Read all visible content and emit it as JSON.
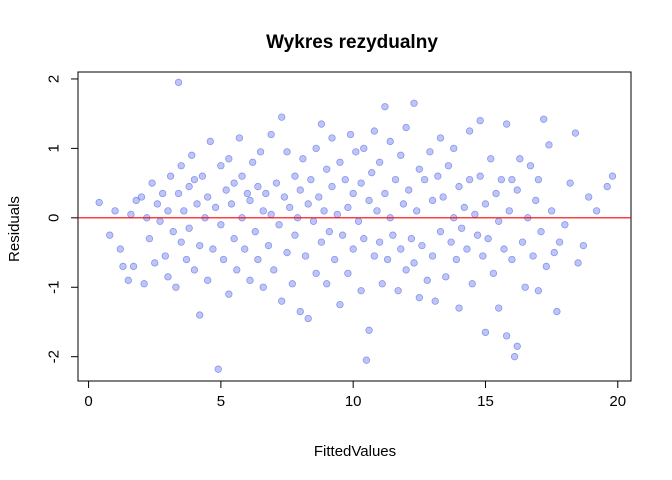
{
  "chart_data": {
    "type": "scatter",
    "title": "Wykres rezydualny",
    "xlabel": "FittedValues",
    "ylabel": "Residuals",
    "xlim": [
      -0.4,
      20.5
    ],
    "ylim": [
      -2.35,
      2.1
    ],
    "xticks": [
      0,
      5,
      10,
      15,
      20
    ],
    "yticks": [
      -2,
      -1,
      0,
      1,
      2
    ],
    "grid": false,
    "point_color": "#6b7cf0",
    "point_stroke": "#3c4fd8",
    "hline": {
      "y": 0,
      "color": "#ff0000"
    },
    "points": [
      [
        0.4,
        0.22
      ],
      [
        0.8,
        -0.25
      ],
      [
        1.0,
        0.1
      ],
      [
        1.2,
        -0.45
      ],
      [
        1.3,
        -0.7
      ],
      [
        1.5,
        -0.9
      ],
      [
        1.6,
        0.05
      ],
      [
        1.8,
        0.25
      ],
      [
        1.7,
        -0.7
      ],
      [
        2.0,
        0.3
      ],
      [
        2.1,
        -0.95
      ],
      [
        2.2,
        0.0
      ],
      [
        2.4,
        0.5
      ],
      [
        2.3,
        -0.3
      ],
      [
        2.5,
        -0.65
      ],
      [
        2.6,
        0.2
      ],
      [
        2.7,
        -0.05
      ],
      [
        2.8,
        0.35
      ],
      [
        2.9,
        -0.55
      ],
      [
        3.0,
        0.1
      ],
      [
        3.0,
        -0.85
      ],
      [
        3.1,
        0.6
      ],
      [
        3.2,
        -0.2
      ],
      [
        3.3,
        -1.0
      ],
      [
        3.4,
        1.95
      ],
      [
        3.4,
        0.35
      ],
      [
        3.5,
        -0.35
      ],
      [
        3.5,
        0.75
      ],
      [
        3.6,
        0.1
      ],
      [
        3.7,
        -0.6
      ],
      [
        3.8,
        0.45
      ],
      [
        3.8,
        -0.15
      ],
      [
        3.9,
        0.9
      ],
      [
        4.0,
        0.55
      ],
      [
        4.0,
        -0.75
      ],
      [
        4.1,
        0.2
      ],
      [
        4.2,
        -1.4
      ],
      [
        4.2,
        -0.4
      ],
      [
        4.3,
        0.6
      ],
      [
        4.4,
        0.0
      ],
      [
        4.5,
        -0.9
      ],
      [
        4.5,
        0.3
      ],
      [
        4.6,
        1.1
      ],
      [
        4.7,
        -0.45
      ],
      [
        4.8,
        0.15
      ],
      [
        4.9,
        -2.18
      ],
      [
        5.0,
        0.75
      ],
      [
        5.0,
        -0.1
      ],
      [
        5.1,
        -0.6
      ],
      [
        5.2,
        0.4
      ],
      [
        5.3,
        -1.1
      ],
      [
        5.3,
        0.85
      ],
      [
        5.4,
        0.2
      ],
      [
        5.5,
        -0.3
      ],
      [
        5.5,
        0.5
      ],
      [
        5.6,
        -0.75
      ],
      [
        5.7,
        1.15
      ],
      [
        5.8,
        0.0
      ],
      [
        5.8,
        0.6
      ],
      [
        5.9,
        -0.45
      ],
      [
        6.0,
        0.35
      ],
      [
        6.1,
        -0.9
      ],
      [
        6.1,
        0.25
      ],
      [
        6.2,
        0.8
      ],
      [
        6.3,
        -0.2
      ],
      [
        6.4,
        0.45
      ],
      [
        6.4,
        -0.6
      ],
      [
        6.5,
        0.95
      ],
      [
        6.6,
        0.1
      ],
      [
        6.6,
        -1.0
      ],
      [
        6.7,
        0.35
      ],
      [
        6.8,
        -0.4
      ],
      [
        6.9,
        1.2
      ],
      [
        6.9,
        0.05
      ],
      [
        7.0,
        -0.75
      ],
      [
        7.1,
        0.5
      ],
      [
        7.2,
        -0.1
      ],
      [
        7.3,
        1.45
      ],
      [
        7.3,
        -1.2
      ],
      [
        7.4,
        0.3
      ],
      [
        7.5,
        -0.5
      ],
      [
        7.5,
        0.95
      ],
      [
        7.6,
        0.15
      ],
      [
        7.7,
        -0.95
      ],
      [
        7.8,
        0.6
      ],
      [
        7.8,
        -0.25
      ],
      [
        7.9,
        0.0
      ],
      [
        8.0,
        0.4
      ],
      [
        8.0,
        -1.35
      ],
      [
        8.1,
        0.85
      ],
      [
        8.2,
        -0.55
      ],
      [
        8.3,
        0.2
      ],
      [
        8.3,
        -1.45
      ],
      [
        8.4,
        0.55
      ],
      [
        8.5,
        -0.05
      ],
      [
        8.6,
        1.0
      ],
      [
        8.6,
        -0.8
      ],
      [
        8.7,
        0.3
      ],
      [
        8.8,
        1.35
      ],
      [
        8.8,
        -0.35
      ],
      [
        8.9,
        0.1
      ],
      [
        9.0,
        0.7
      ],
      [
        9.0,
        -0.95
      ],
      [
        9.1,
        -0.2
      ],
      [
        9.2,
        0.45
      ],
      [
        9.2,
        1.15
      ],
      [
        9.3,
        -0.6
      ],
      [
        9.4,
        0.05
      ],
      [
        9.5,
        0.8
      ],
      [
        9.5,
        -1.25
      ],
      [
        9.6,
        -0.25
      ],
      [
        9.7,
        0.55
      ],
      [
        9.8,
        0.15
      ],
      [
        9.8,
        -0.8
      ],
      [
        9.9,
        1.2
      ],
      [
        10.0,
        -0.45
      ],
      [
        10.0,
        0.35
      ],
      [
        10.1,
        0.95
      ],
      [
        10.2,
        -0.05
      ],
      [
        10.3,
        -1.05
      ],
      [
        10.3,
        0.5
      ],
      [
        10.4,
        1.0
      ],
      [
        10.4,
        -0.3
      ],
      [
        10.5,
        -2.05
      ],
      [
        10.6,
        0.25
      ],
      [
        10.6,
        -1.62
      ],
      [
        10.7,
        0.65
      ],
      [
        10.8,
        -0.55
      ],
      [
        10.8,
        1.25
      ],
      [
        10.9,
        0.1
      ],
      [
        11.0,
        -0.35
      ],
      [
        11.0,
        0.8
      ],
      [
        11.1,
        -0.95
      ],
      [
        11.2,
        1.6
      ],
      [
        11.2,
        0.35
      ],
      [
        11.3,
        -0.6
      ],
      [
        11.4,
        1.1
      ],
      [
        11.4,
        0.0
      ],
      [
        11.5,
        -0.25
      ],
      [
        11.6,
        0.55
      ],
      [
        11.7,
        -1.05
      ],
      [
        11.8,
        0.9
      ],
      [
        11.8,
        -0.45
      ],
      [
        11.9,
        0.2
      ],
      [
        12.0,
        -0.75
      ],
      [
        12.0,
        1.3
      ],
      [
        12.1,
        0.4
      ],
      [
        12.2,
        -0.3
      ],
      [
        12.3,
        1.65
      ],
      [
        12.3,
        -0.65
      ],
      [
        12.4,
        0.1
      ],
      [
        12.5,
        0.7
      ],
      [
        12.5,
        -1.15
      ],
      [
        12.6,
        -0.4
      ],
      [
        12.7,
        0.55
      ],
      [
        12.8,
        -0.9
      ],
      [
        12.9,
        0.95
      ],
      [
        13.0,
        0.25
      ],
      [
        13.0,
        -0.55
      ],
      [
        13.1,
        -1.2
      ],
      [
        13.2,
        0.6
      ],
      [
        13.3,
        1.15
      ],
      [
        13.3,
        -0.2
      ],
      [
        13.4,
        0.3
      ],
      [
        13.5,
        -0.85
      ],
      [
        13.6,
        0.75
      ],
      [
        13.7,
        -0.35
      ],
      [
        13.8,
        0.0
      ],
      [
        13.8,
        1.0
      ],
      [
        13.9,
        -0.6
      ],
      [
        14.0,
        0.45
      ],
      [
        14.0,
        -1.3
      ],
      [
        14.1,
        -0.15
      ],
      [
        14.2,
        0.15
      ],
      [
        14.3,
        -0.45
      ],
      [
        14.4,
        1.25
      ],
      [
        14.4,
        0.55
      ],
      [
        14.5,
        -0.95
      ],
      [
        14.6,
        0.05
      ],
      [
        14.7,
        -0.25
      ],
      [
        14.8,
        1.4
      ],
      [
        14.8,
        0.6
      ],
      [
        14.9,
        -0.55
      ],
      [
        15.0,
        -1.65
      ],
      [
        15.0,
        0.2
      ],
      [
        15.1,
        -0.3
      ],
      [
        15.2,
        0.85
      ],
      [
        15.3,
        -0.8
      ],
      [
        15.4,
        0.35
      ],
      [
        15.5,
        -0.05
      ],
      [
        15.5,
        -1.3
      ],
      [
        15.6,
        0.55
      ],
      [
        15.7,
        -0.45
      ],
      [
        15.8,
        1.35
      ],
      [
        15.8,
        -1.7
      ],
      [
        15.9,
        0.1
      ],
      [
        16.0,
        0.55
      ],
      [
        16.0,
        -0.6
      ],
      [
        16.1,
        -2.0
      ],
      [
        16.2,
        -1.85
      ],
      [
        16.2,
        0.4
      ],
      [
        16.3,
        0.85
      ],
      [
        16.4,
        -0.35
      ],
      [
        16.5,
        -1.0
      ],
      [
        16.6,
        0.0
      ],
      [
        16.7,
        0.75
      ],
      [
        16.8,
        -0.55
      ],
      [
        16.9,
        0.25
      ],
      [
        17.0,
        -1.05
      ],
      [
        17.0,
        0.55
      ],
      [
        17.1,
        -0.2
      ],
      [
        17.2,
        1.42
      ],
      [
        17.3,
        -0.7
      ],
      [
        17.4,
        1.05
      ],
      [
        17.5,
        0.1
      ],
      [
        17.6,
        -0.5
      ],
      [
        17.7,
        -1.35
      ],
      [
        17.8,
        -0.35
      ],
      [
        18.0,
        -0.1
      ],
      [
        18.2,
        0.5
      ],
      [
        18.4,
        1.22
      ],
      [
        18.5,
        -0.65
      ],
      [
        18.7,
        -0.4
      ],
      [
        18.9,
        0.3
      ],
      [
        19.2,
        0.1
      ],
      [
        19.6,
        0.45
      ],
      [
        19.8,
        0.6
      ]
    ]
  }
}
